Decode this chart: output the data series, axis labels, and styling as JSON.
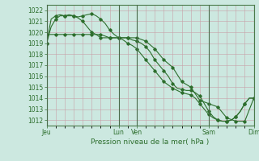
{
  "title": "",
  "xlabel": "Pression niveau de la mer( hPa )",
  "ylim": [
    1011.5,
    1022.5
  ],
  "yticks": [
    1012,
    1013,
    1014,
    1015,
    1016,
    1017,
    1018,
    1019,
    1020,
    1021,
    1022
  ],
  "bg_color": "#cce8e0",
  "line_color": "#2d6e2d",
  "line1_x": [
    0,
    0.5,
    1,
    1.5,
    2,
    2.5,
    3,
    3.5,
    4,
    4.5,
    5,
    5.5,
    6,
    6.5,
    7,
    7.5,
    8,
    8.5,
    9,
    9.5,
    10,
    10.5,
    11,
    11.5,
    12,
    12.5,
    13,
    13.5,
    14,
    14.5,
    15,
    15.5,
    16,
    16.5,
    17,
    17.5,
    18,
    18.5,
    19,
    19.5,
    20,
    20.5,
    21,
    21.5,
    22,
    22.5,
    23
  ],
  "line1_y": [
    1019.0,
    1021.2,
    1021.5,
    1021.6,
    1021.5,
    1021.5,
    1021.5,
    1021.4,
    1021.5,
    1021.6,
    1021.7,
    1021.5,
    1021.2,
    1020.8,
    1020.2,
    1019.8,
    1019.5,
    1019.5,
    1019.5,
    1019.3,
    1019.2,
    1019.0,
    1018.7,
    1018.2,
    1017.5,
    1017.0,
    1016.5,
    1016.0,
    1015.3,
    1014.9,
    1014.8,
    1014.7,
    1014.7,
    1014.5,
    1014.2,
    1013.5,
    1012.8,
    1012.3,
    1012.0,
    1011.9,
    1011.9,
    1012.0,
    1012.3,
    1012.8,
    1013.5,
    1014.0,
    1014.0
  ],
  "line2_x": [
    0,
    0.5,
    1,
    1.5,
    2,
    2.5,
    3,
    3.5,
    4,
    4.5,
    5,
    5.5,
    6,
    6.5,
    7,
    7.5,
    8,
    8.5,
    9,
    9.5,
    10,
    10.5,
    11,
    11.5,
    12,
    12.5,
    13,
    13.5,
    14,
    14.5,
    15,
    15.5,
    16,
    16.5,
    17,
    17.5,
    18,
    18.5,
    19,
    19.5,
    20,
    20.5,
    21,
    21.5,
    22,
    22.5,
    23
  ],
  "line2_y": [
    1019.0,
    1020.5,
    1021.2,
    1021.5,
    1021.5,
    1021.6,
    1021.5,
    1021.3,
    1021.0,
    1020.5,
    1020.0,
    1019.8,
    1019.5,
    1019.5,
    1019.5,
    1019.5,
    1019.5,
    1019.3,
    1019.0,
    1018.8,
    1018.5,
    1018.0,
    1017.5,
    1017.0,
    1016.5,
    1016.0,
    1015.5,
    1015.2,
    1014.9,
    1014.7,
    1014.5,
    1014.4,
    1014.3,
    1014.0,
    1013.5,
    1013.0,
    1012.5,
    1012.2,
    1012.0,
    1011.9,
    1011.9,
    1012.0,
    1012.3,
    1012.8,
    1013.5,
    1014.0,
    1014.0
  ],
  "line3_x": [
    0,
    1,
    2,
    3,
    4,
    5,
    6,
    7,
    8,
    9,
    10,
    11,
    12,
    13,
    14,
    15,
    16,
    17,
    18,
    19,
    20,
    21,
    22,
    23
  ],
  "line3_y": [
    1019.8,
    1019.8,
    1019.8,
    1019.8,
    1019.8,
    1019.8,
    1019.8,
    1019.5,
    1019.5,
    1019.5,
    1019.5,
    1019.2,
    1018.5,
    1017.5,
    1016.8,
    1015.5,
    1015.0,
    1013.8,
    1013.5,
    1013.2,
    1012.2,
    1011.9,
    1011.9,
    1014.0
  ],
  "xtick_positions": [
    0,
    8,
    10,
    18,
    23
  ],
  "xtick_labels": [
    "Jeu",
    "Lun",
    "Ven",
    "Sam",
    "Dim"
  ],
  "vline_positions": [
    0,
    8,
    10,
    18,
    23
  ],
  "figsize": [
    3.2,
    2.0
  ],
  "dpi": 100
}
